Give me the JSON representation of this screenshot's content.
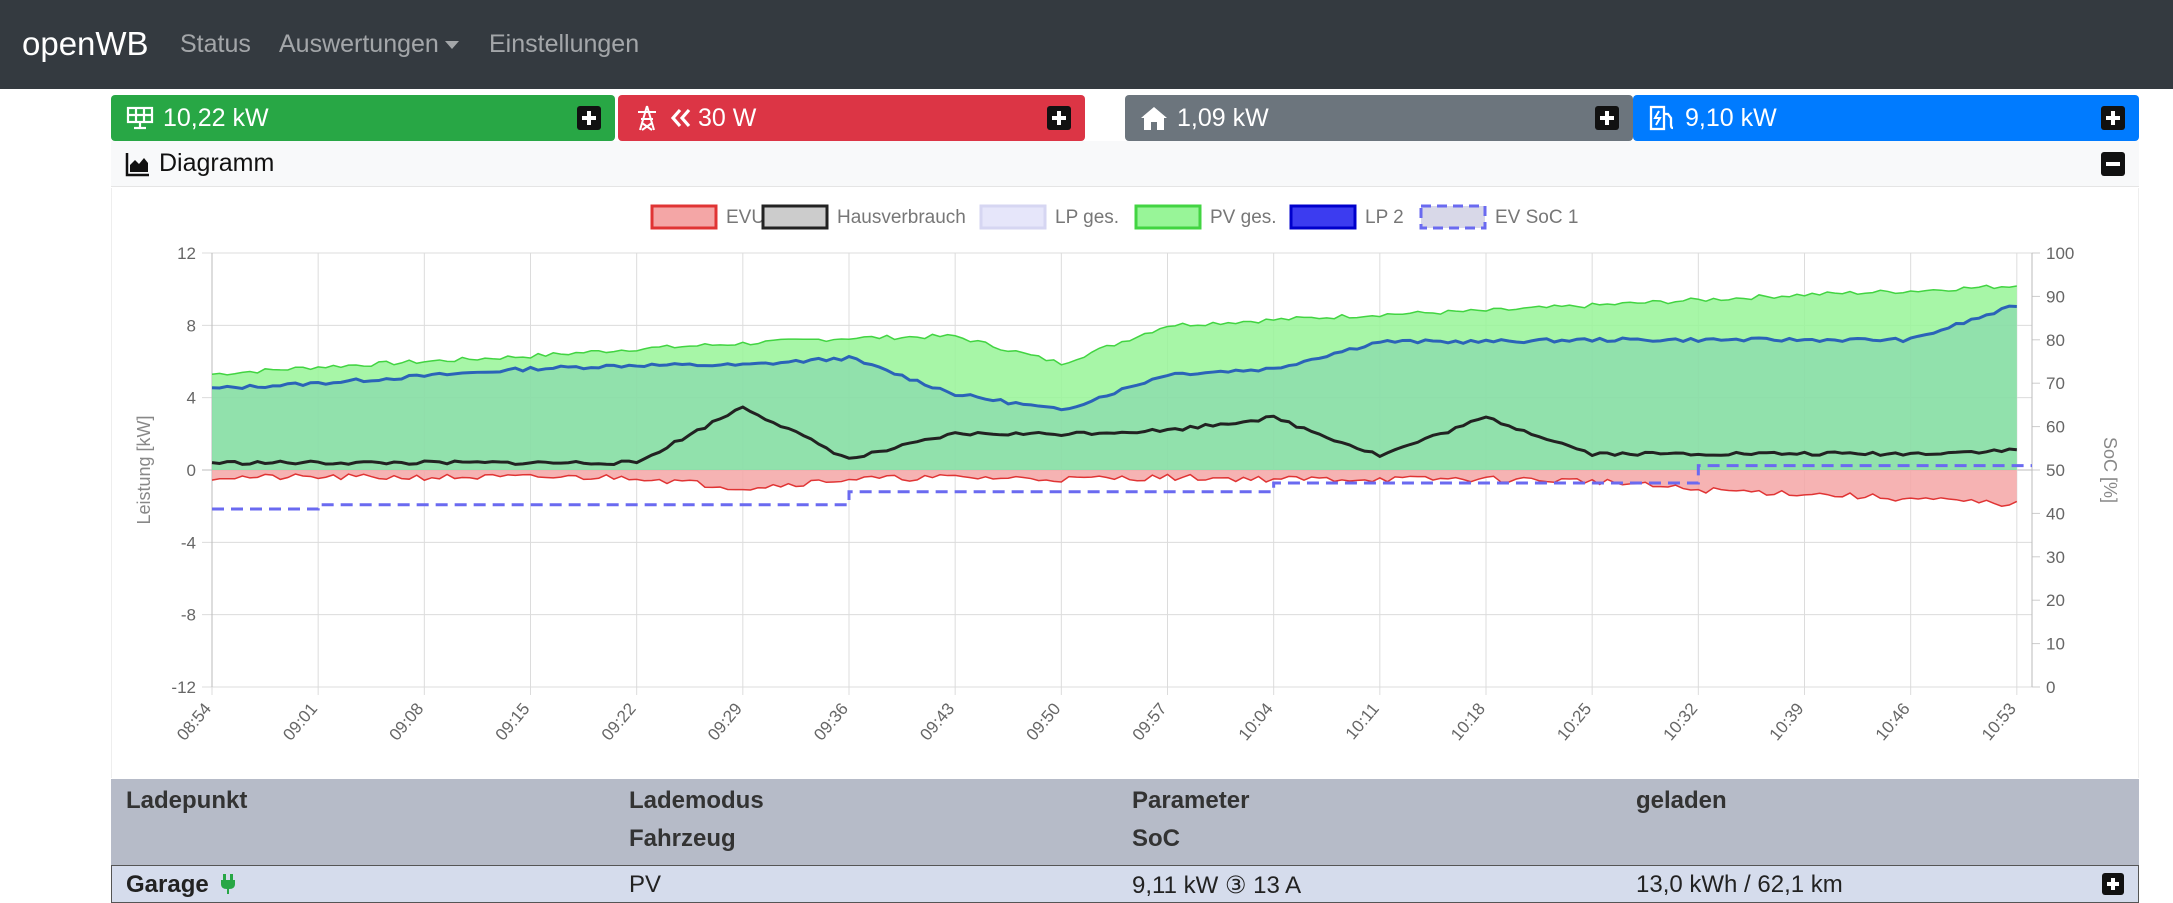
{
  "nav": {
    "brand": "openWB",
    "items": [
      "Status",
      "Auswertungen",
      "Einstellungen"
    ]
  },
  "tiles": [
    {
      "value": "10,22 kW",
      "icon": "solar-panel-icon",
      "color": "#28a745"
    },
    {
      "value": "30 W",
      "icon": "power-tower-icon",
      "direction_icon": "double-chevron-left-icon",
      "color": "#dc3545"
    },
    {
      "value": "1,09 kW",
      "icon": "home-icon",
      "color": "#6c757d"
    },
    {
      "value": "9,10 kW",
      "icon": "charging-station-icon",
      "color": "#007bff"
    }
  ],
  "diagram": {
    "title": "Diagramm",
    "icon": "area-chart-icon"
  },
  "table": {
    "headers": {
      "col1": "Ladepunkt",
      "col2": "Lademodus",
      "col2b": "Fahrzeug",
      "col3": "Parameter",
      "col3b": "SoC",
      "col4": "geladen"
    },
    "rows": [
      {
        "name": "Garage",
        "mode": "PV",
        "params": "9,11 kW ③ 13 A",
        "charged": "13,0 kWh / 62,1 km",
        "plug_icon": "plug-icon"
      }
    ]
  },
  "chart_data": {
    "type": "area",
    "title": "",
    "ylabel": "Leistung [kW]",
    "y2label": "SoC [%]",
    "ylim": [
      -12,
      12
    ],
    "y2lim": [
      0,
      100
    ],
    "yticks": [
      "12",
      "8",
      "4",
      "0",
      "-4",
      "-8",
      "-12"
    ],
    "y2ticks": [
      "100",
      "90",
      "80",
      "70",
      "60",
      "50",
      "40",
      "30",
      "20",
      "10",
      "0"
    ],
    "xticks": [
      "08:54",
      "09:01",
      "09:08",
      "09:15",
      "09:22",
      "09:29",
      "09:36",
      "09:43",
      "09:50",
      "09:57",
      "10:04",
      "10:11",
      "10:18",
      "10:25",
      "10:32",
      "10:39",
      "10:46",
      "10:53"
    ],
    "legend": [
      {
        "name": "EVU",
        "fill": "#f4a6a6",
        "stroke": "#e03434",
        "dash": false
      },
      {
        "name": "Hausverbrauch",
        "fill": "#cccccc",
        "stroke": "#222222",
        "dash": false
      },
      {
        "name": "LP ges.",
        "fill": "#e6e6fa",
        "stroke": "#d6d6f2",
        "dash": false
      },
      {
        "name": "PV ges.",
        "fill": "#98f598",
        "stroke": "#42d442",
        "dash": false
      },
      {
        "name": "LP 2",
        "fill": "#3c3cf0",
        "stroke": "#0000cc",
        "dash": false
      },
      {
        "name": "EV SoC 1",
        "fill": "#d8d8e8",
        "stroke": "#6a6af0",
        "dash": true
      }
    ],
    "legend_position": "top",
    "grid": true,
    "x_minutes": [
      0,
      7,
      14,
      21,
      28,
      35,
      42,
      49,
      56,
      63,
      70,
      77,
      84,
      91,
      98,
      105,
      112,
      119
    ],
    "series": [
      {
        "name": "PV ges.",
        "x": [
          "08:54",
          "09:01",
          "09:08",
          "09:15",
          "09:22",
          "09:29",
          "09:36",
          "09:43",
          "09:50",
          "09:57",
          "10:04",
          "10:11",
          "10:18",
          "10:25",
          "10:32",
          "10:39",
          "10:46",
          "10:53"
        ],
        "values": [
          5.3,
          5.7,
          6.0,
          6.3,
          6.7,
          7.0,
          7.3,
          7.4,
          5.9,
          8.0,
          8.3,
          8.6,
          8.8,
          9.1,
          9.4,
          9.7,
          9.9,
          10.2
        ]
      },
      {
        "name": "LP 2",
        "x": [
          "08:54",
          "09:01",
          "09:08",
          "09:15",
          "09:22",
          "09:29",
          "09:36",
          "09:43",
          "09:50",
          "09:57",
          "10:04",
          "10:11",
          "10:18",
          "10:25",
          "10:32",
          "10:39",
          "10:46",
          "10:53"
        ],
        "values": [
          4.5,
          4.8,
          5.2,
          5.6,
          5.8,
          5.8,
          6.2,
          4.2,
          3.3,
          5.3,
          5.6,
          7.1,
          7.1,
          7.2,
          7.2,
          7.2,
          7.2,
          9.1
        ]
      },
      {
        "name": "Hausverbrauch",
        "x": [
          "08:54",
          "09:01",
          "09:08",
          "09:15",
          "09:22",
          "09:29",
          "09:36",
          "09:43",
          "09:50",
          "09:57",
          "10:04",
          "10:11",
          "10:18",
          "10:25",
          "10:32",
          "10:39",
          "10:46",
          "10:53"
        ],
        "values": [
          0.4,
          0.4,
          0.4,
          0.4,
          0.4,
          3.5,
          0.6,
          2.0,
          2.0,
          2.2,
          2.9,
          0.8,
          2.9,
          0.9,
          0.9,
          0.9,
          0.9,
          1.1
        ]
      },
      {
        "name": "EVU",
        "x": [
          "08:54",
          "09:01",
          "09:08",
          "09:15",
          "09:22",
          "09:29",
          "09:36",
          "09:43",
          "09:50",
          "09:57",
          "10:04",
          "10:11",
          "10:18",
          "10:25",
          "10:32",
          "10:39",
          "10:46",
          "10:53"
        ],
        "values": [
          -0.4,
          -0.4,
          -0.4,
          -0.4,
          -0.4,
          -1.0,
          -0.5,
          -0.4,
          -0.5,
          -0.4,
          -0.5,
          -0.5,
          -0.5,
          -0.6,
          -1.1,
          -1.3,
          -1.6,
          -1.9
        ]
      },
      {
        "name": "EV SoC 1",
        "axis": "right",
        "x": [
          "08:54",
          "09:01",
          "09:08",
          "09:15",
          "09:22",
          "09:29",
          "09:36",
          "09:43",
          "09:50",
          "09:57",
          "10:04",
          "10:11",
          "10:18",
          "10:25",
          "10:32",
          "10:39",
          "10:46",
          "10:53"
        ],
        "values": [
          41,
          42,
          42,
          42,
          42,
          42,
          45,
          45,
          45,
          45,
          47,
          47,
          47,
          47,
          51,
          51,
          51,
          51
        ]
      }
    ]
  }
}
